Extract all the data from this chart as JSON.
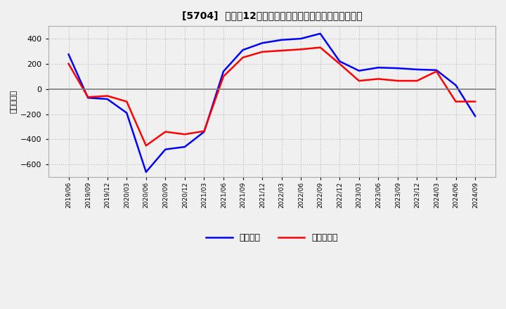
{
  "title": "[5704]  利益だ12か月移動合計の対前年同期増減額の推移",
  "ylabel": "（百万円）",
  "background_color": "#f0f0f0",
  "plot_background_color": "#f0f0f0",
  "grid_color": "#aaaaaa",
  "zero_line_color": "#808080",
  "line_color_blue": "#0000ff",
  "line_color_red": "#ff0000",
  "legend_label_blue": "経常利益",
  "legend_label_red": "当期純利益",
  "ylim": [
    -700,
    500
  ],
  "yticks": [
    -600,
    -400,
    -200,
    0,
    200,
    400
  ],
  "x_labels": [
    "2019/06",
    "2019/09",
    "2019/12",
    "2020/03",
    "2020/06",
    "2020/09",
    "2020/12",
    "2021/03",
    "2021/06",
    "2021/09",
    "2021/12",
    "2022/03",
    "2022/06",
    "2022/09",
    "2022/12",
    "2023/03",
    "2023/06",
    "2023/09",
    "2023/12",
    "2024/03",
    "2024/06",
    "2024/09"
  ],
  "blue_values": [
    275,
    -70,
    -80,
    -190,
    -660,
    -480,
    -460,
    -340,
    140,
    310,
    365,
    390,
    400,
    440,
    220,
    145,
    170,
    165,
    155,
    150,
    30,
    -215
  ],
  "red_values": [
    200,
    -65,
    -55,
    -100,
    -450,
    -340,
    -360,
    -335,
    100,
    250,
    295,
    305,
    315,
    330,
    200,
    65,
    80,
    65,
    65,
    140,
    -100,
    -100
  ]
}
